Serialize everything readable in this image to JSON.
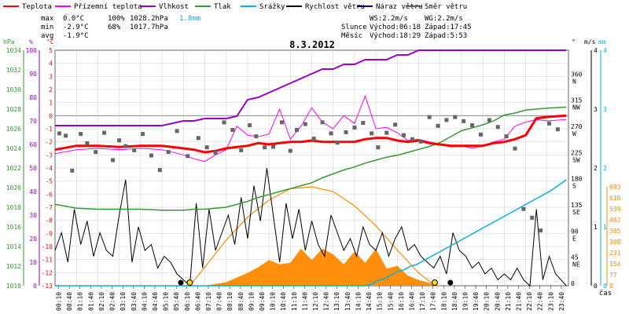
{
  "legend": [
    {
      "label": "Teplota",
      "color": "#ff0000"
    },
    {
      "label": "Přízemní teplota",
      "color": "#ff00ff"
    },
    {
      "label": "Vlhkost",
      "color": "#9900cc"
    },
    {
      "label": "Tlak",
      "color": "#339933"
    },
    {
      "label": "Srážky",
      "color": "#00b0e0"
    },
    {
      "label": "Rychlost větru",
      "color": "#000000"
    },
    {
      "label": "Náraz větru",
      "color": "#000080"
    },
    {
      "label": "Směr větru",
      "color": "#666666"
    }
  ],
  "stats": {
    "max": {
      "label": "max",
      "temp": "0.0°C",
      "hum": "100%",
      "press": "1028.2hPa",
      "rain": "1.8mm"
    },
    "min": {
      "label": "min",
      "temp": "-2.9°C",
      "hum": "68%",
      "press": "1017.7hPa"
    },
    "avg": {
      "label": "avg",
      "temp": "-1.9°C"
    }
  },
  "wind_info": {
    "ws": "WS:2.2m/s",
    "wg": "WG:2.2m/s"
  },
  "sun": {
    "label": "Slunce",
    "rise": "Východ:06:18",
    "set": "Západ:17:45"
  },
  "moon": {
    "label": "Měsíc",
    "rise": "Východ:18:29",
    "set": "Západ:5:53"
  },
  "colors": {
    "temp": "#ff0000",
    "ground": "#ff00ff",
    "hum": "#9900cc",
    "press": "#339933",
    "rain": "#00b0e0",
    "wind": "#000000",
    "dir": "#666666",
    "solar": "#ff8800",
    "sun": "#ffdd00",
    "grid": "#cccccc"
  },
  "chart_data": {
    "type": "line",
    "title": "8.3.2012",
    "xlabel": "čas",
    "time_ticks": [
      "00:10",
      "00:40",
      "01:10",
      "01:40",
      "02:10",
      "02:40",
      "03:10",
      "03:40",
      "04:10",
      "04:40",
      "05:10",
      "05:40",
      "06:10",
      "06:40",
      "07:10",
      "07:40",
      "08:10",
      "08:40",
      "09:10",
      "09:40",
      "10:10",
      "10:40",
      "11:10",
      "11:40",
      "12:10",
      "12:40",
      "13:10",
      "13:40",
      "14:10",
      "14:40",
      "15:10",
      "15:40",
      "16:10",
      "16:40",
      "17:10",
      "17:40",
      "18:10",
      "18:40",
      "19:10",
      "19:40",
      "20:10",
      "20:40",
      "21:10",
      "21:40",
      "22:10",
      "22:40",
      "23:10",
      "23:40"
    ],
    "axes": {
      "hpa": {
        "unit": "hPa",
        "range": [
          1010,
          1034
        ],
        "ticks": [
          "1034",
          "1032",
          "1030",
          "1028",
          "1026",
          "1024",
          "1022",
          "1020",
          "1018",
          "1016",
          "1014",
          "1012",
          "1010"
        ]
      },
      "pct": {
        "unit": "%",
        "range": [
          0,
          100
        ],
        "ticks": [
          "100",
          "90",
          "80",
          "70",
          "60",
          "50",
          "40",
          "30",
          "20",
          "10",
          "0"
        ]
      },
      "temp": {
        "unit": "°C",
        "range": [
          -13,
          5
        ],
        "ticks": [
          "5",
          "4",
          "3",
          "2",
          "1",
          "0",
          "-1",
          "-2",
          "-3",
          "-4",
          "-5",
          "-6",
          "-7",
          "-8",
          "-9",
          "-10",
          "-11",
          "-12",
          "-13"
        ]
      },
      "dir": {
        "unit": "°",
        "ticks": [
          {
            "deg": "360",
            "dir": "N"
          },
          {
            "deg": "315",
            "dir": "NW"
          },
          {
            "deg": "270",
            "dir": "W"
          },
          {
            "deg": "225",
            "dir": "SW"
          },
          {
            "deg": "180",
            "dir": "S"
          },
          {
            "deg": "135",
            "dir": "SE"
          },
          {
            "deg": "90",
            "dir": "E"
          },
          {
            "deg": "45",
            "dir": "NE"
          },
          {
            "deg": "0",
            "dir": ""
          }
        ]
      },
      "ms": {
        "unit": "m/s",
        "range": [
          0,
          4
        ],
        "ticks": [
          "4",
          "3",
          "2",
          "1",
          "0"
        ]
      },
      "mm": {
        "unit": "mm",
        "range": [
          0,
          4
        ],
        "ticks": [
          "4",
          "3",
          "2",
          "1",
          "0"
        ]
      },
      "wm2": {
        "range": [
          0,
          693
        ],
        "ticks": [
          "693",
          "616",
          "539",
          "462",
          "385",
          "308",
          "231",
          "154",
          "77",
          "0"
        ]
      }
    },
    "series": {
      "temp": {
        "x": [
          0,
          1,
          2,
          3,
          4,
          5,
          6,
          6.5,
          7,
          7.5,
          8,
          8.5,
          9,
          9.5,
          10,
          10.5,
          11,
          11.5,
          12,
          12.5,
          13,
          13.5,
          14,
          14.5,
          15,
          15.5,
          16,
          16.5,
          17,
          17.5,
          18,
          18.5,
          19,
          19.5,
          20,
          20.5,
          21,
          21.5,
          22,
          22.5,
          23,
          23.9
        ],
        "y": [
          -2.6,
          -2.3,
          -2.3,
          -2.4,
          -2.3,
          -2.3,
          -2.5,
          -2.6,
          -2.8,
          -2.7,
          -2.5,
          -2.4,
          -2.3,
          -2.1,
          -2.2,
          -2.1,
          -2.0,
          -2.0,
          -1.9,
          -2.0,
          -2.0,
          -2.0,
          -2.0,
          -1.8,
          -1.7,
          -1.7,
          -1.9,
          -2.0,
          -1.9,
          -2.1,
          -2.2,
          -2.3,
          -2.3,
          -2.3,
          -2.3,
          -2.1,
          -2.0,
          -1.8,
          -1.5,
          -0.2,
          -0.1,
          0.0
        ]
      },
      "ground": {
        "x": [
          0,
          1,
          2,
          3,
          4,
          5,
          6,
          6.5,
          7,
          7.5,
          8,
          8.5,
          9,
          9.5,
          10,
          10.5,
          11,
          11.5,
          12,
          12.5,
          13,
          13.5,
          14,
          14.5,
          15,
          15.5,
          16,
          16.5,
          17,
          17.5,
          18,
          18.5,
          19,
          19.5,
          20,
          20.5,
          21,
          21.5,
          22,
          22.5,
          23,
          23.9
        ],
        "y": [
          -2.9,
          -2.6,
          -2.5,
          -2.6,
          -2.5,
          -2.6,
          -3.0,
          -3.3,
          -3.5,
          -3.0,
          -2.6,
          -0.8,
          -1.5,
          -1.6,
          -1.4,
          0.5,
          -1.8,
          -0.8,
          0.6,
          -0.5,
          -1.0,
          0.0,
          -0.6,
          1.5,
          -1.0,
          -0.9,
          -1.3,
          -1.9,
          -1.8,
          -2.0,
          -2.2,
          -2.4,
          -2.3,
          -2.5,
          -2.3,
          -2.0,
          -1.8,
          -0.8,
          -0.5,
          -0.3,
          -0.4,
          -0.3
        ]
      },
      "hum": {
        "x": [
          0,
          1,
          2,
          3,
          4,
          5,
          6,
          6.5,
          7,
          7.5,
          8,
          8.5,
          9,
          9.5,
          10,
          10.5,
          11,
          11.5,
          12,
          12.5,
          13,
          13.5,
          14,
          14.5,
          15,
          15.5,
          16,
          16.5,
          17,
          17.5,
          18,
          18.5,
          19,
          19.5,
          20,
          20.5,
          21,
          21.5,
          22,
          22.5,
          23,
          23.9
        ],
        "y": [
          68,
          68,
          68,
          68,
          68,
          68,
          70,
          70,
          71,
          71,
          71,
          72,
          79,
          80,
          82,
          84,
          86,
          88,
          90,
          92,
          92,
          94,
          94,
          96,
          96,
          96,
          98,
          98,
          100,
          100,
          100,
          100,
          100,
          100,
          100,
          100,
          100,
          100,
          100,
          100,
          100,
          100
        ]
      },
      "press": {
        "x": [
          0,
          1,
          2,
          3,
          4,
          5,
          6,
          6.5,
          7,
          7.5,
          8,
          8.5,
          9,
          9.5,
          10,
          10.5,
          11,
          11.5,
          12,
          12.5,
          13,
          13.5,
          14,
          14.5,
          15,
          15.5,
          16,
          16.5,
          17,
          17.5,
          18,
          18.5,
          19,
          19.5,
          20,
          20.5,
          21,
          21.5,
          22,
          22.5,
          23,
          23.9
        ],
        "y": [
          1018.3,
          1017.9,
          1017.8,
          1017.8,
          1017.8,
          1017.7,
          1017.7,
          1017.8,
          1017.8,
          1017.9,
          1018.0,
          1018.3,
          1018.6,
          1019.0,
          1019.3,
          1019.6,
          1019.9,
          1020.2,
          1020.5,
          1021.0,
          1021.4,
          1021.8,
          1022.1,
          1022.5,
          1022.8,
          1023.1,
          1023.3,
          1023.6,
          1023.9,
          1024.2,
          1024.6,
          1025.2,
          1025.8,
          1026.1,
          1026.4,
          1026.8,
          1027.4,
          1027.6,
          1027.9,
          1028.0,
          1028.1,
          1028.2
        ]
      },
      "rain": {
        "x": [
          0,
          14.5,
          14.8,
          15.1,
          15.4,
          15.7,
          16.0,
          16.3,
          16.6,
          16.9,
          17.2,
          17.5,
          17.8,
          18.1,
          18.4,
          18.7,
          19.0,
          19.3,
          19.6,
          19.9,
          20.2,
          20.5,
          20.8,
          21.1,
          21.4,
          21.7,
          22.0,
          22.3,
          22.6,
          22.9,
          23.2,
          23.9
        ],
        "y": [
          0,
          0,
          0.03,
          0.09,
          0.12,
          0.18,
          0.24,
          0.27,
          0.33,
          0.36,
          0.42,
          0.48,
          0.54,
          0.6,
          0.66,
          0.72,
          0.78,
          0.84,
          0.9,
          0.96,
          1.02,
          1.08,
          1.14,
          1.2,
          1.26,
          1.32,
          1.38,
          1.44,
          1.5,
          1.56,
          1.62,
          1.8
        ]
      },
      "wind": {
        "x": [
          0,
          0.3,
          0.6,
          0.9,
          1.2,
          1.5,
          1.8,
          2.1,
          2.4,
          2.7,
          3.0,
          3.3,
          3.6,
          3.9,
          4.2,
          4.5,
          4.8,
          5.1,
          5.4,
          5.7,
          6.0,
          6.3,
          6.6,
          6.9,
          7.2,
          7.5,
          7.8,
          8.1,
          8.4,
          8.7,
          9.0,
          9.3,
          9.6,
          9.9,
          10.2,
          10.5,
          10.8,
          11.1,
          11.4,
          11.7,
          12.0,
          12.3,
          12.6,
          12.9,
          13.2,
          13.5,
          13.8,
          14.1,
          14.4,
          14.7,
          15.0,
          15.3,
          15.6,
          15.9,
          16.2,
          16.5,
          16.8,
          17.1,
          17.4,
          17.7,
          18.0,
          18.3,
          18.6,
          18.9,
          19.2,
          19.5,
          19.8,
          20.1,
          20.4,
          20.7,
          21.0,
          21.3,
          21.6,
          21.9,
          22.2,
          22.5,
          22.8,
          23.1,
          23.4,
          23.9
        ],
        "y": [
          0.6,
          0.9,
          0.4,
          1.3,
          0.7,
          1.1,
          0.5,
          0.9,
          0.6,
          0.5,
          1.2,
          1.8,
          0.4,
          1.0,
          0.6,
          0.7,
          0.3,
          0.5,
          0.4,
          0.2,
          0.1,
          0.0,
          1.4,
          0.3,
          1.3,
          0.6,
          0.9,
          1.2,
          0.7,
          1.5,
          0.8,
          1.7,
          1.1,
          2.0,
          1.2,
          0.4,
          1.4,
          0.8,
          1.3,
          0.6,
          1.1,
          0.7,
          0.5,
          1.2,
          0.9,
          0.6,
          0.8,
          0.5,
          1.0,
          0.7,
          0.6,
          0.9,
          0.5,
          0.8,
          1.0,
          0.6,
          0.7,
          0.5,
          0.4,
          0.3,
          0.5,
          0.2,
          0.9,
          0.6,
          0.5,
          0.3,
          0.4,
          0.2,
          0.3,
          0.1,
          0.2,
          0.1,
          0.3,
          0.1,
          0.0,
          1.3,
          0.1,
          0.5,
          0.2,
          0.0
        ]
      },
      "dir": {
        "x": [
          0.2,
          0.5,
          0.8,
          1.2,
          1.5,
          1.9,
          2.3,
          2.7,
          3.0,
          3.3,
          3.7,
          4.1,
          4.5,
          4.9,
          5.3,
          5.7,
          6.2,
          6.7,
          7.1,
          7.5,
          7.9,
          8.3,
          8.7,
          9.1,
          9.4,
          9.8,
          10.2,
          10.6,
          11.0,
          11.3,
          11.7,
          12.1,
          12.5,
          12.9,
          13.2,
          13.6,
          14.0,
          14.4,
          14.8,
          15.1,
          15.5,
          15.9,
          16.3,
          16.7,
          17.1,
          17.5,
          17.9,
          18.3,
          18.7,
          19.1,
          19.5,
          19.9,
          20.3,
          20.7,
          21.1,
          21.5,
          21.9,
          22.3,
          22.7,
          23.1,
          23.5
        ],
        "y": [
          262,
          258,
          198,
          261,
          245,
          230,
          263,
          216,
          250,
          240,
          233,
          261,
          224,
          199,
          230,
          266,
          223,
          254,
          238,
          229,
          281,
          268,
          233,
          276,
          257,
          238,
          239,
          281,
          232,
          268,
          278,
          253,
          281,
          262,
          246,
          264,
          272,
          280,
          262,
          238,
          263,
          277,
          259,
          252,
          248,
          290,
          275,
          285,
          290,
          283,
          276,
          260,
          285,
          273,
          257,
          236,
          132,
          117,
          95,
          279,
          269
        ]
      },
      "solar": {
        "x": [
          6.3,
          7,
          8,
          9,
          9.5,
          10,
          10.5,
          11,
          11.5,
          12,
          12.5,
          13,
          13.5,
          14,
          14.5,
          15,
          15.5,
          16,
          16.5,
          17,
          17.5,
          17.75
        ],
        "y": [
          0,
          0,
          25,
          90,
          130,
          180,
          150,
          160,
          260,
          180,
          260,
          220,
          150,
          240,
          160,
          260,
          120,
          140,
          70,
          40,
          20,
          0
        ]
      },
      "theoretical_solar": {
        "x": [
          6.3,
          7,
          8,
          9,
          10,
          11,
          12,
          13,
          14,
          15,
          16,
          17,
          17.75
        ],
        "y": [
          0,
          130,
          320,
          480,
          600,
          680,
          693,
          660,
          560,
          420,
          250,
          90,
          0
        ]
      }
    }
  }
}
